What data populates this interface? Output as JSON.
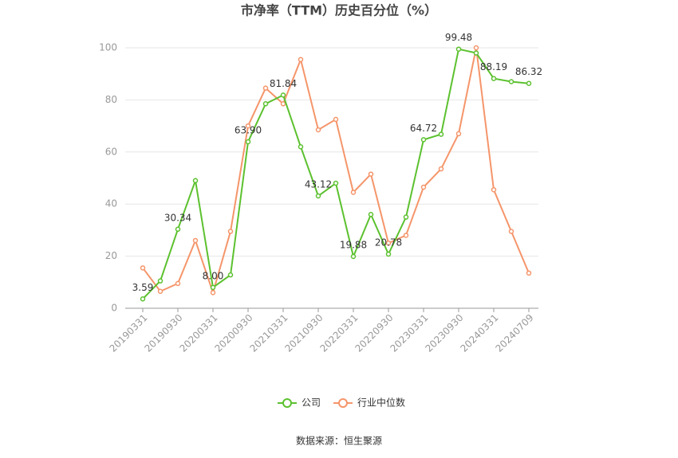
{
  "chart_data": {
    "type": "line",
    "title": "市净率（TTM）历史百分位（%）",
    "categories": [
      "20190331",
      null,
      "20190930",
      null,
      "20200331",
      null,
      "20200930",
      null,
      "20210331",
      null,
      "20210930",
      null,
      "20220331",
      null,
      "20220930",
      null,
      "20230331",
      null,
      "20230930",
      null,
      "20240331",
      null,
      "20240709"
    ],
    "series": [
      {
        "name": "公司",
        "color": "#5cc12f",
        "values": [
          3.59,
          10.5,
          30.34,
          49,
          8.0,
          12.8,
          63.9,
          78.5,
          81.84,
          62,
          43.12,
          48,
          19.88,
          36,
          20.78,
          35,
          64.72,
          66.8,
          99.48,
          98,
          88.19,
          87,
          86.32
        ],
        "value_labels": [
          "3.59",
          null,
          "30.34",
          null,
          "8.00",
          null,
          "63.90",
          null,
          "81.84",
          null,
          "43.12",
          null,
          "19.88",
          null,
          "20.78",
          null,
          "64.72",
          null,
          "99.48",
          null,
          "88.19",
          null,
          "86.32"
        ]
      },
      {
        "name": "行业中位数",
        "color": "#f5956a",
        "values": [
          15.5,
          6.5,
          9.5,
          26,
          6,
          29.5,
          70,
          84.5,
          78.5,
          95.5,
          68.5,
          72.5,
          44.5,
          51.5,
          25,
          28,
          46.5,
          53.5,
          67,
          100,
          45.5,
          29.5,
          13.5
        ]
      }
    ],
    "ylim": [
      0,
      100
    ],
    "yticks": [
      0,
      20,
      40,
      60,
      80,
      100
    ],
    "grid": true
  },
  "source": "数据来源：恒生聚源"
}
